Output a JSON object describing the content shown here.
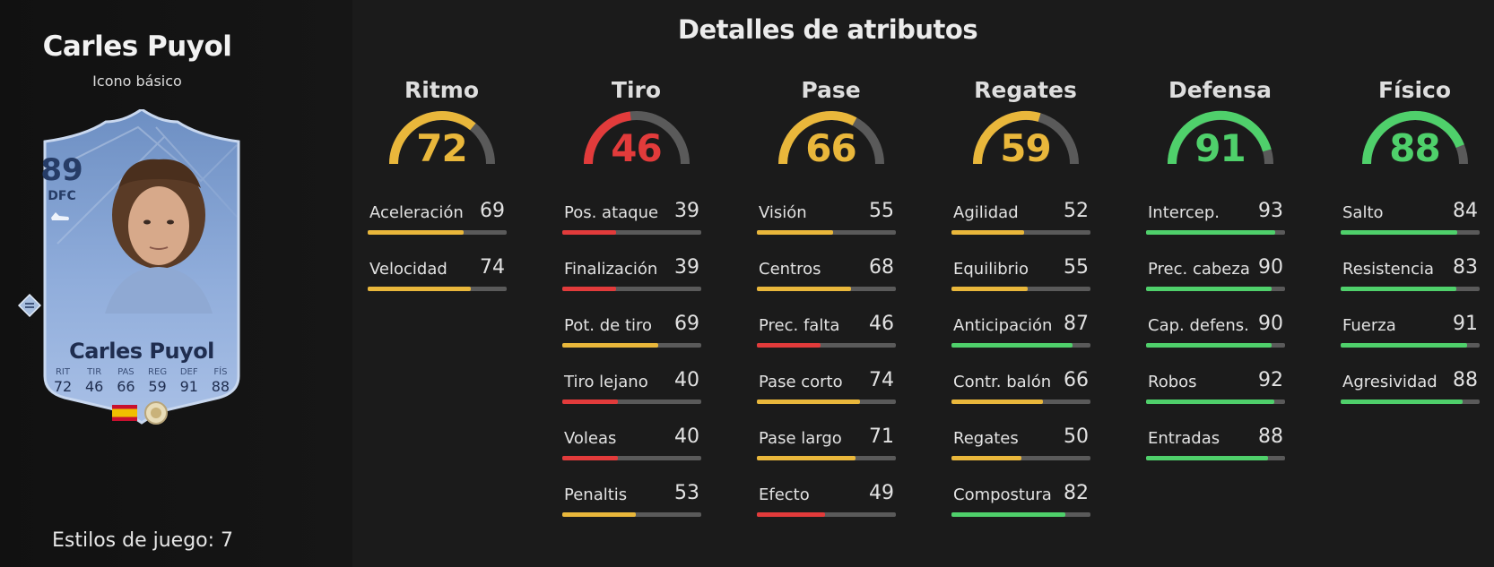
{
  "colors": {
    "red": "#e23b3b",
    "yellow": "#e9b73b",
    "green": "#4fd06b",
    "track": "#5a5a5a"
  },
  "player": {
    "name": "Carles Puyol",
    "subtitle": "Icono básico",
    "playstyles_label": "Estilos de juego: 7"
  },
  "card": {
    "rating": "89",
    "position": "DFC",
    "name": "Carles Puyol",
    "stats": [
      {
        "label": "RIT",
        "value": "72"
      },
      {
        "label": "TIR",
        "value": "46"
      },
      {
        "label": "PAS",
        "value": "66"
      },
      {
        "label": "REG",
        "value": "59"
      },
      {
        "label": "DEF",
        "value": "91"
      },
      {
        "label": "FÍS",
        "value": "88"
      }
    ],
    "nation_icon": "spain-flag-icon",
    "club_icon": "icon-club-badge-icon",
    "boot_icon": "boot-icon"
  },
  "details": {
    "title": "Detalles de atributos",
    "categories": [
      {
        "label": "Ritmo",
        "value": 72,
        "attributes": [
          {
            "name": "Aceleración",
            "value": 69
          },
          {
            "name": "Velocidad",
            "value": 74
          }
        ]
      },
      {
        "label": "Tiro",
        "value": 46,
        "attributes": [
          {
            "name": "Pos. ataque",
            "value": 39
          },
          {
            "name": "Finalización",
            "value": 39
          },
          {
            "name": "Pot. de tiro",
            "value": 69
          },
          {
            "name": "Tiro lejano",
            "value": 40
          },
          {
            "name": "Voleas",
            "value": 40
          },
          {
            "name": "Penaltis",
            "value": 53
          }
        ]
      },
      {
        "label": "Pase",
        "value": 66,
        "attributes": [
          {
            "name": "Visión",
            "value": 55
          },
          {
            "name": "Centros",
            "value": 68
          },
          {
            "name": "Prec. falta",
            "value": 46
          },
          {
            "name": "Pase corto",
            "value": 74
          },
          {
            "name": "Pase largo",
            "value": 71
          },
          {
            "name": "Efecto",
            "value": 49
          }
        ]
      },
      {
        "label": "Regates",
        "value": 59,
        "attributes": [
          {
            "name": "Agilidad",
            "value": 52
          },
          {
            "name": "Equilibrio",
            "value": 55
          },
          {
            "name": "Anticipación",
            "value": 87
          },
          {
            "name": "Contr. balón",
            "value": 66
          },
          {
            "name": "Regates",
            "value": 50
          },
          {
            "name": "Compostura",
            "value": 82
          }
        ]
      },
      {
        "label": "Defensa",
        "value": 91,
        "attributes": [
          {
            "name": "Intercep.",
            "value": 93
          },
          {
            "name": "Prec. cabeza",
            "value": 90
          },
          {
            "name": "Cap. defens.",
            "value": 90
          },
          {
            "name": "Robos",
            "value": 92
          },
          {
            "name": "Entradas",
            "value": 88
          }
        ]
      },
      {
        "label": "Físico",
        "value": 88,
        "attributes": [
          {
            "name": "Salto",
            "value": 84
          },
          {
            "name": "Resistencia",
            "value": 83
          },
          {
            "name": "Fuerza",
            "value": 91
          },
          {
            "name": "Agresividad",
            "value": 88
          }
        ]
      }
    ]
  }
}
